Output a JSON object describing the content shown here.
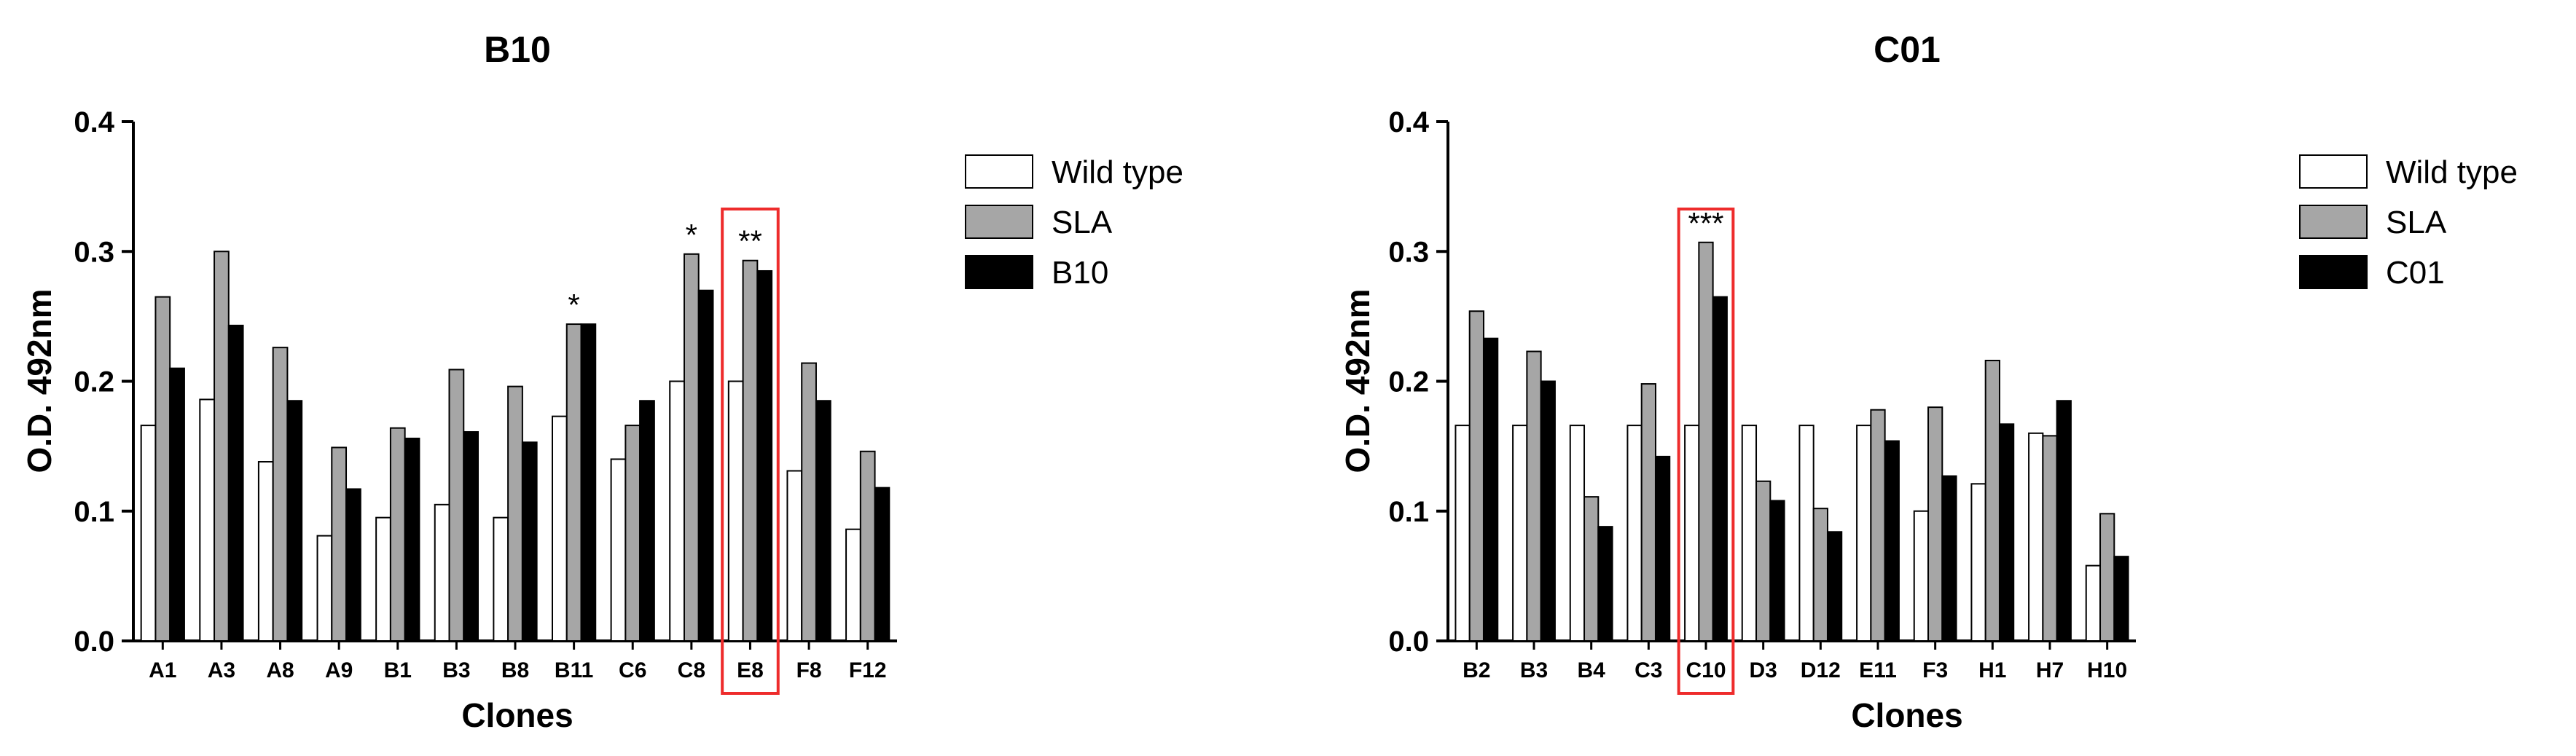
{
  "colors": {
    "wild_type": "#ffffff",
    "sla": "#a6a6a6",
    "clone": "#000000",
    "highlight": "#ee2c2c"
  },
  "chart_data": [
    {
      "type": "bar",
      "title": "B10",
      "xlabel": "Clones",
      "ylabel": "O.D. 492nm",
      "ylim": [
        0,
        0.4
      ],
      "yticks": [
        "0.0",
        "0.1",
        "0.2",
        "0.3",
        "0.4"
      ],
      "grid": false,
      "legend_position": "right",
      "categories": [
        "A1",
        "A3",
        "A8",
        "A9",
        "B1",
        "B3",
        "B8",
        "B11",
        "C6",
        "C8",
        "E8",
        "F8",
        "F12"
      ],
      "series": [
        {
          "name": "Wild type",
          "values": [
            0.166,
            0.186,
            0.138,
            0.081,
            0.095,
            0.105,
            0.095,
            0.173,
            0.14,
            0.2,
            0.2,
            0.131,
            0.086
          ]
        },
        {
          "name": "SLA",
          "values": [
            0.265,
            0.3,
            0.226,
            0.149,
            0.164,
            0.209,
            0.196,
            0.244,
            0.166,
            0.298,
            0.293,
            0.214,
            0.146
          ]
        },
        {
          "name": "B10",
          "values": [
            0.21,
            0.243,
            0.185,
            0.117,
            0.156,
            0.161,
            0.153,
            0.244,
            0.185,
            0.27,
            0.285,
            0.185,
            0.118
          ]
        }
      ],
      "annotations": [
        {
          "category": "B11",
          "text": "*"
        },
        {
          "category": "C8",
          "text": "*"
        },
        {
          "category": "E8",
          "text": "**"
        }
      ],
      "highlight_category": "E8"
    },
    {
      "type": "bar",
      "title": "C01",
      "xlabel": "Clones",
      "ylabel": "O.D. 492nm",
      "ylim": [
        0,
        0.4
      ],
      "yticks": [
        "0.0",
        "0.1",
        "0.2",
        "0.3",
        "0.4"
      ],
      "grid": false,
      "legend_position": "right",
      "categories": [
        "B2",
        "B3",
        "B4",
        "C3",
        "C10",
        "D3",
        "D12",
        "E11",
        "F3",
        "H1",
        "H7",
        "H10"
      ],
      "series": [
        {
          "name": "Wild type",
          "values": [
            0.166,
            0.166,
            0.166,
            0.166,
            0.166,
            0.166,
            0.166,
            0.166,
            0.1,
            0.121,
            0.16,
            0.058
          ]
        },
        {
          "name": "SLA",
          "values": [
            0.254,
            0.223,
            0.111,
            0.198,
            0.307,
            0.123,
            0.102,
            0.178,
            0.18,
            0.216,
            0.158,
            0.098
          ]
        },
        {
          "name": "C01",
          "values": [
            0.233,
            0.2,
            0.088,
            0.142,
            0.265,
            0.108,
            0.084,
            0.154,
            0.127,
            0.167,
            0.185,
            0.065
          ]
        }
      ],
      "annotations": [
        {
          "category": "C10",
          "text": "***"
        }
      ],
      "highlight_category": "C10"
    }
  ]
}
